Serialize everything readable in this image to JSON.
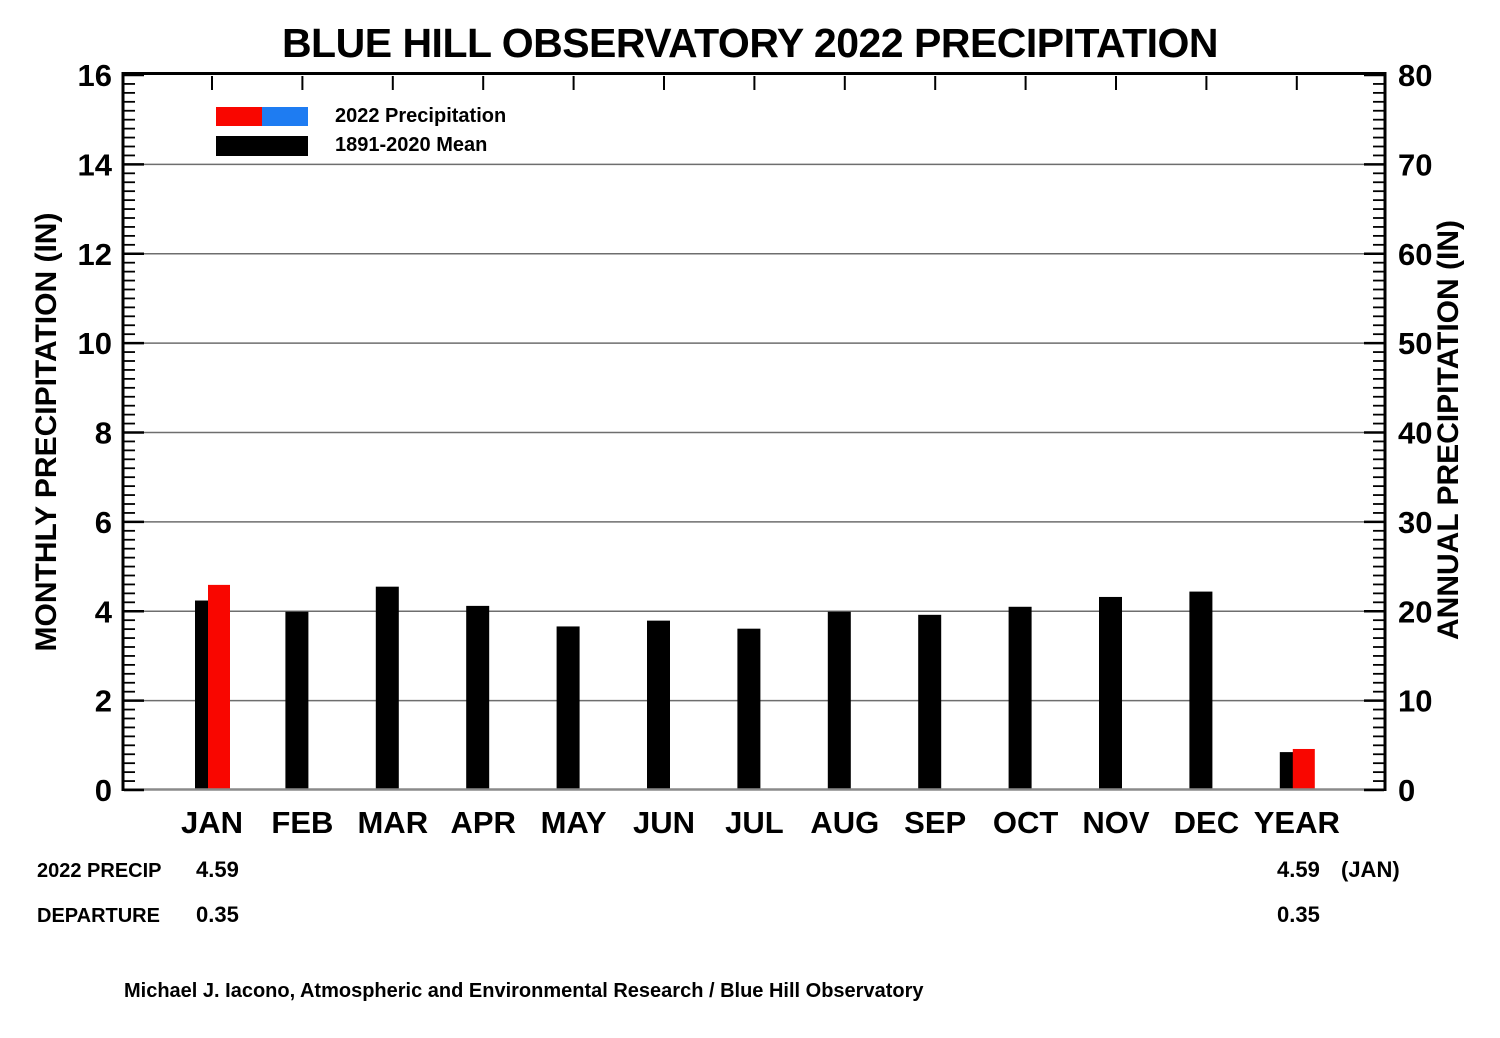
{
  "title": "BLUE HILL OBSERVATORY 2022 PRECIPITATION",
  "chart_data": {
    "type": "bar",
    "title": "BLUE HILL OBSERVATORY 2022 PRECIPITATION",
    "categories": [
      "JAN",
      "FEB",
      "MAR",
      "APR",
      "MAY",
      "JUN",
      "JUL",
      "AUG",
      "SEP",
      "OCT",
      "NOV",
      "DEC",
      "YEAR"
    ],
    "series": [
      {
        "name": "2022 Precipitation",
        "values": [
          4.59,
          null,
          null,
          null,
          null,
          null,
          null,
          null,
          null,
          null,
          null,
          null,
          4.59
        ]
      },
      {
        "name": "1891-2020 Mean",
        "values": [
          4.24,
          3.99,
          4.55,
          4.12,
          3.66,
          3.79,
          3.61,
          3.99,
          3.92,
          4.1,
          4.32,
          4.44,
          4.24
        ]
      }
    ],
    "left_axis": {
      "label": "MONTHLY PRECIPITATION (IN)",
      "min": 0,
      "max": 16,
      "major_ticks": [
        0,
        2,
        4,
        6,
        8,
        10,
        12,
        14,
        16
      ],
      "minor_tick_step": 0.2
    },
    "right_axis": {
      "label": "ANNUAL PRECIPITATION (IN)",
      "min": 0,
      "max": 80,
      "major_ticks": [
        0,
        10,
        20,
        30,
        40,
        50,
        60,
        70,
        80
      ],
      "minor_tick_step": 1
    },
    "year_column_axis": "right",
    "grid": "horizontal lines at left-axis major ticks",
    "legend_position": "top-left",
    "colors": {
      "bar_2022_above": "#F90600",
      "bar_2022_below": "#1E7CF2",
      "bar_mean": "#000000",
      "grid": "#6E6E6E",
      "baseline": "#8A8A8A"
    }
  },
  "legend": {
    "item_2022": "2022 Precipitation",
    "item_mean": "1891-2020 Mean"
  },
  "annotations": {
    "precip": {
      "label": "2022 PRECIP",
      "jan_value": "4.59",
      "year_value": "4.59",
      "note": "(JAN)"
    },
    "departure": {
      "label": "DEPARTURE",
      "jan_value": "0.35",
      "year_value": "0.35"
    }
  },
  "credit": "Michael J. Iacono, Atmospheric and Environmental Research / Blue Hill Observatory"
}
